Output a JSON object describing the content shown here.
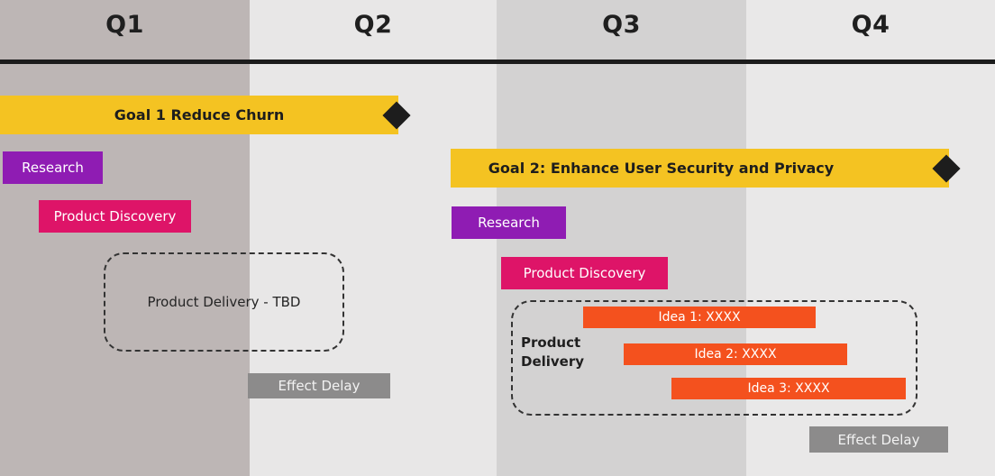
{
  "timeline": {
    "quarters": [
      {
        "label": "Q1"
      },
      {
        "label": "Q2"
      },
      {
        "label": "Q3"
      },
      {
        "label": "Q4"
      }
    ]
  },
  "goal1_track": {
    "goal_label": "Goal 1 Reduce Churn",
    "research": "Research",
    "product_discovery": "Product Discovery",
    "product_delivery": "Product Delivery - TBD",
    "effect_delay": "Effect Delay",
    "milestone_icon": "diamond"
  },
  "goal2_track": {
    "goal_label": "Goal 2: Enhance User Security and Privacy",
    "research": "Research",
    "product_discovery": "Product Discovery",
    "product_delivery_label": "Product Delivery",
    "ideas": [
      "Idea 1: XXXX",
      "Idea 2: XXXX",
      "Idea 3: XXXX"
    ],
    "effect_delay": "Effect Delay",
    "milestone_icon": "diamond"
  },
  "colors": {
    "goal_bar": "#f4c322",
    "research_bar": "#8f1cb3",
    "discovery_bar": "#de1468",
    "idea_bar": "#f4511e",
    "delay_bar": "#8c8b8b",
    "milestone": "#1d1d1d",
    "divider": "#1c1c1c",
    "q1_column_bg": "#bdb6b5",
    "q2_column_bg": "#e8e7e7",
    "q3_column_bg": "#d3d2d2",
    "q4_column_bg": "#e9e8e8"
  }
}
